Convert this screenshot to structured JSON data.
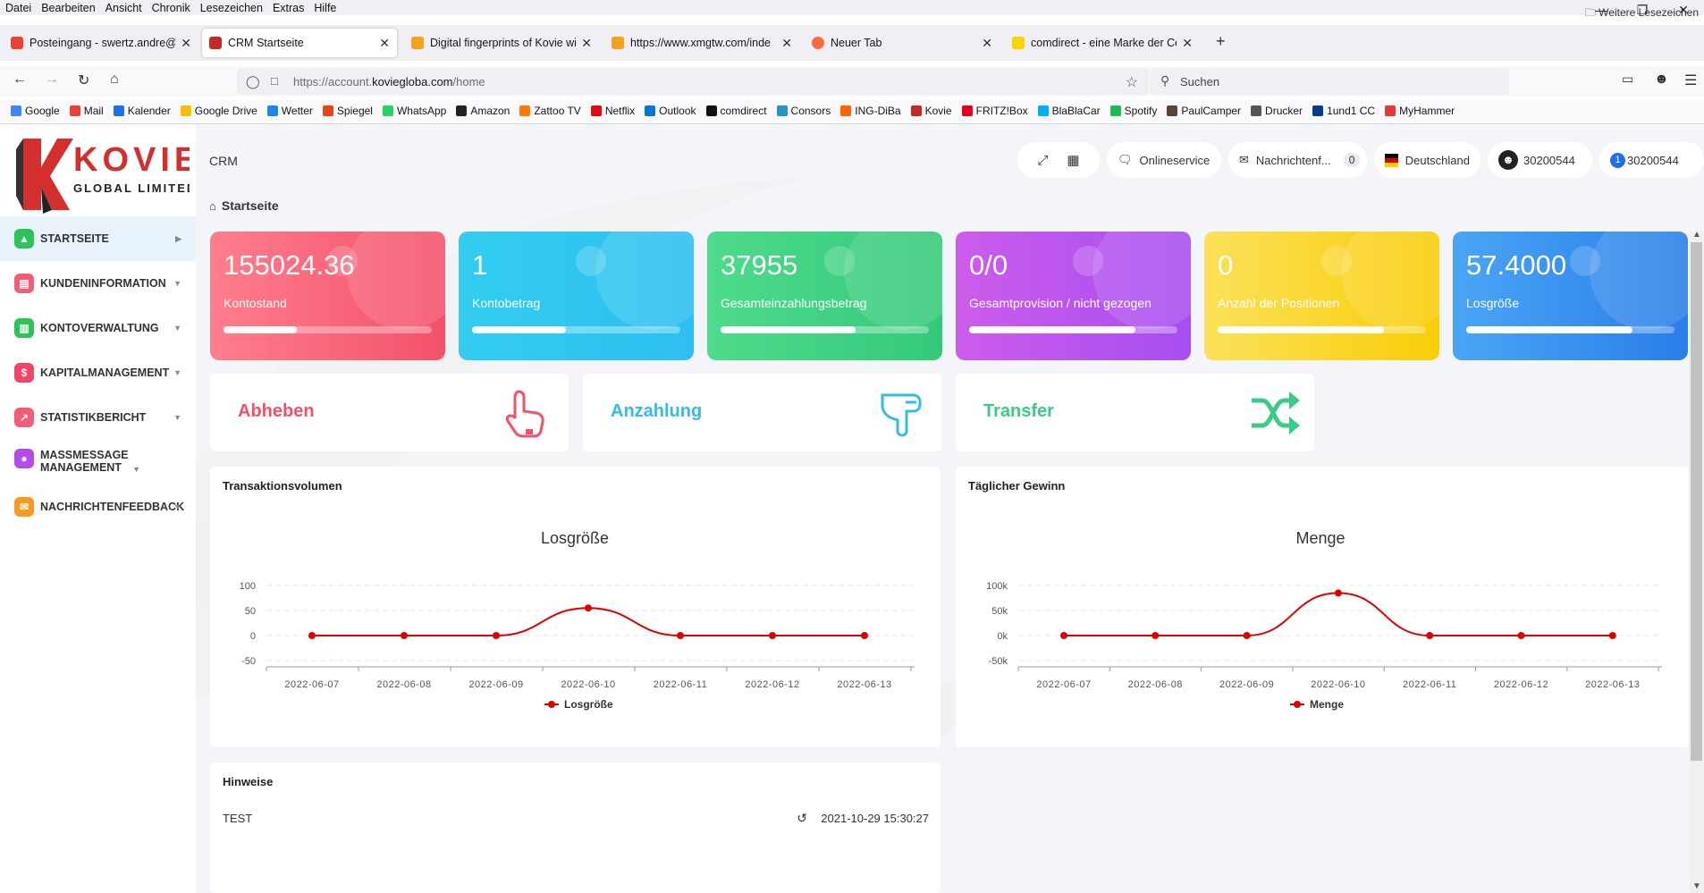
{
  "browser": {
    "menu": [
      "Datei",
      "Bearbeiten",
      "Ansicht",
      "Chronik",
      "Lesezeichen",
      "Extras",
      "Hilfe"
    ],
    "tabs": [
      {
        "title": "Posteingang - swertz.andre@ge",
        "color": "#ea4335"
      },
      {
        "title": "CRM Startseite",
        "color": "#c62828"
      },
      {
        "title": "Digital fingerprints of Kovie will",
        "color": "#f4a21c"
      },
      {
        "title": "https://www.xmgtw.com/inde",
        "color": "#f4a21c"
      },
      {
        "title": "Neuer Tab",
        "color": "#ff6a3d"
      },
      {
        "title": "comdirect - eine Marke der Cor",
        "color": "#f9d300"
      }
    ],
    "url_prefix": "https://account.",
    "url_host": "koviegloba.com",
    "url_path": "/home",
    "search_placeholder": "Suchen",
    "bookmarks": [
      {
        "label": "Google",
        "color": "#4285f4"
      },
      {
        "label": "Mail",
        "color": "#ea4335"
      },
      {
        "label": "Kalender",
        "color": "#1a73e8"
      },
      {
        "label": "Google Drive",
        "color": "#fbbc04"
      },
      {
        "label": "Wetter",
        "color": "#1e88e5"
      },
      {
        "label": "Spiegel",
        "color": "#e64415"
      },
      {
        "label": "WhatsApp",
        "color": "#25d366"
      },
      {
        "label": "Amazon",
        "color": "#222222"
      },
      {
        "label": "Zattoo TV",
        "color": "#ff7a00"
      },
      {
        "label": "Netflix",
        "color": "#e50914"
      },
      {
        "label": "Outlook",
        "color": "#0078d4"
      },
      {
        "label": "comdirect",
        "color": "#111111"
      },
      {
        "label": "Consors",
        "color": "#2196c8"
      },
      {
        "label": "ING-DiBa",
        "color": "#ff6200"
      },
      {
        "label": "Kovie",
        "color": "#c62828"
      },
      {
        "label": "FRITZ!Box",
        "color": "#e2001a"
      },
      {
        "label": "BlaBlaCar",
        "color": "#00aff5"
      },
      {
        "label": "Spotify",
        "color": "#1db954"
      },
      {
        "label": "PaulCamper",
        "color": "#5d4037"
      },
      {
        "label": "Drucker",
        "color": "#555555"
      },
      {
        "label": "1und1 CC",
        "color": "#003d8f"
      },
      {
        "label": "MyHammer",
        "color": "#e53935"
      }
    ],
    "bookmarks_more": "Weitere Lesezeichen"
  },
  "logo": {
    "brand": "KOVIE",
    "sub": "GLOBAL LIMITED",
    "letter": "K"
  },
  "sidebar": [
    {
      "label": "STARTSEITE",
      "color": "#2ec25b",
      "glyph": "▲"
    },
    {
      "label": "KUNDENINFORMATION",
      "color": "#f25c78",
      "glyph": "▤"
    },
    {
      "label": "KONTOVERWALTUNG",
      "color": "#2ec25b",
      "glyph": "▥"
    },
    {
      "label": "KAPITALMANAGEMENT",
      "color": "#f2456a",
      "glyph": "$"
    },
    {
      "label": "STATISTIKBERICHT",
      "color": "#f25c78",
      "glyph": "↗"
    },
    {
      "label": "MASSMESSAGE MANAGEMENT",
      "color": "#b44ce8",
      "glyph": "●"
    },
    {
      "label": "NACHRICHTENFEEDBACK",
      "color": "#f59a23",
      "glyph": "✉"
    }
  ],
  "topbar": {
    "section": "CRM",
    "onlineservice": "Onlineservice",
    "messages": "Nachrichtenf...",
    "messages_count": "0",
    "country": "Deutschland",
    "user_id": "30200544",
    "badge": "1",
    "account": "30200544"
  },
  "breadcrumb": "Startseite",
  "stats": [
    {
      "value": "155024.36",
      "label": "Kontostand",
      "progress": 0.35,
      "from": "#ff7e8e",
      "to": "#f3516a"
    },
    {
      "value": "1",
      "label": "Kontobetrag",
      "progress": 0.45,
      "from": "#33cdf0",
      "to": "#2dbff0"
    },
    {
      "value": "37955",
      "label": "Gesamteinzahlungsbetrag",
      "progress": 0.65,
      "from": "#4edb8c",
      "to": "#34c97a"
    },
    {
      "value": "0/0",
      "label": "Gesamtprovision / nicht gezogen",
      "progress": 0.8,
      "from": "#cd5cec",
      "to": "#a64ef0"
    },
    {
      "value": "0",
      "label": "Anzahl der Positionen",
      "progress": 0.8,
      "from": "#fbe15a",
      "to": "#f9cd06"
    },
    {
      "value": "57.4000",
      "label": "Losgröße",
      "progress": 0.8,
      "from": "#4aa5f5",
      "to": "#2a7ee8"
    }
  ],
  "actions": [
    {
      "label": "Abheben",
      "color": "#f3516a"
    },
    {
      "label": "Anzahlung",
      "color": "#33bbe9"
    },
    {
      "label": "Transfer",
      "color": "#3acb86"
    }
  ],
  "panels": {
    "volume_title": "Transaktionsvolumen",
    "profit_title": "Täglicher Gewinn",
    "notes_title": "Hinweise"
  },
  "chart_data": [
    {
      "type": "line",
      "title": "Losgröße",
      "x": [
        "2022-06-07",
        "2022-06-08",
        "2022-06-09",
        "2022-06-10",
        "2022-06-11",
        "2022-06-12",
        "2022-06-13"
      ],
      "series": [
        {
          "name": "Losgröße",
          "values": [
            0,
            0,
            0,
            55,
            0,
            0,
            0
          ],
          "color": "#dd0000"
        }
      ],
      "yticks": [
        "100",
        "50",
        "0",
        "-50"
      ],
      "ylim": [
        -50,
        100
      ],
      "grid": true,
      "legend": "bottom"
    },
    {
      "type": "line",
      "title": "Menge",
      "x": [
        "2022-06-07",
        "2022-06-08",
        "2022-06-09",
        "2022-06-10",
        "2022-06-11",
        "2022-06-12",
        "2022-06-13"
      ],
      "series": [
        {
          "name": "Menge",
          "values": [
            0,
            0,
            0,
            85000,
            0,
            0,
            0
          ],
          "color": "#dd0000"
        }
      ],
      "yticks": [
        "100k",
        "50k",
        "0k",
        "-50k"
      ],
      "ylim": [
        -50000,
        100000
      ],
      "grid": true,
      "legend": "bottom"
    }
  ],
  "notes": [
    {
      "text": "TEST",
      "time": "2021-10-29 15:30:27"
    }
  ]
}
